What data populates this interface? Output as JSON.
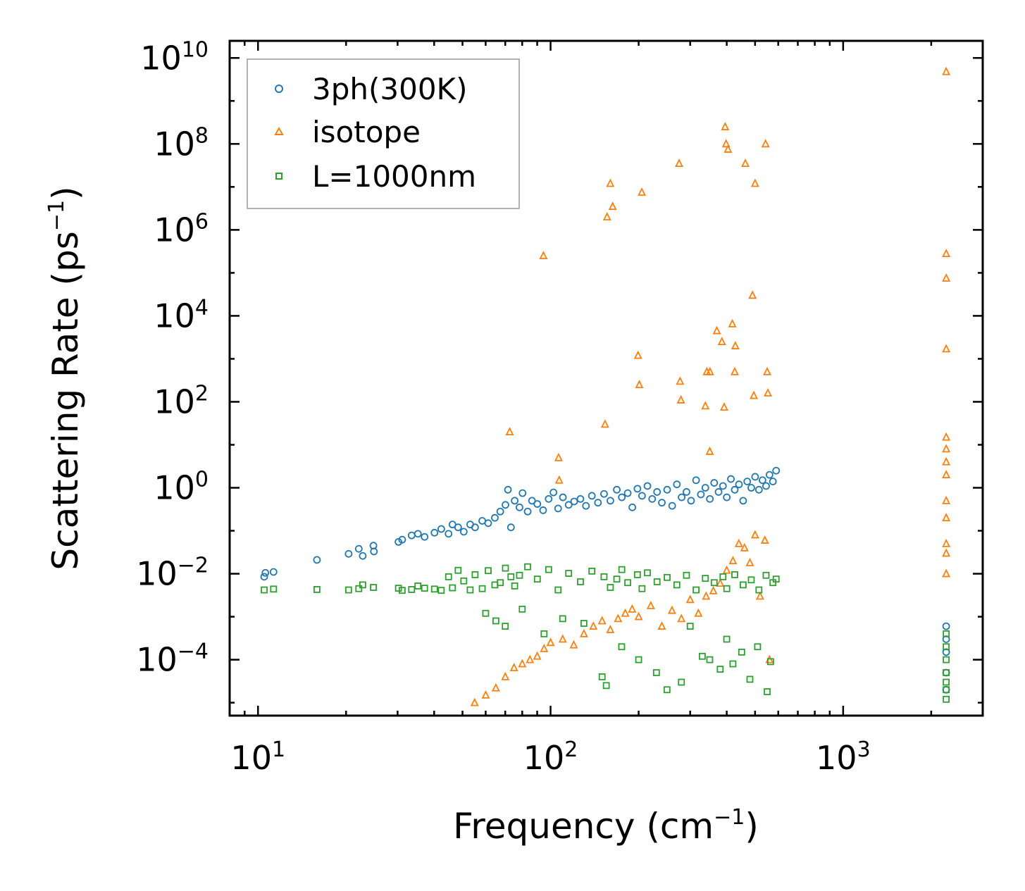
{
  "chart_data": {
    "type": "scatter",
    "title": "",
    "xlabel": "Frequency (cm",
    "xlabel_exp": "−1",
    "xlabel_tail": ")",
    "ylabel": "Scattering Rate (ps",
    "ylabel_exp": "−1",
    "ylabel_tail": ")",
    "xscale": "log",
    "yscale": "log",
    "xlim": [
      8,
      3000
    ],
    "ylim": [
      5e-06,
      25000000000.0
    ],
    "x_ticks": [
      {
        "value": 10,
        "base": "10",
        "exp": "1"
      },
      {
        "value": 100,
        "base": "10",
        "exp": "2"
      },
      {
        "value": 1000,
        "base": "10",
        "exp": "3"
      }
    ],
    "y_ticks": [
      {
        "value": 10000000000.0,
        "base": "10",
        "exp": "10"
      },
      {
        "value": 100000000.0,
        "base": "10",
        "exp": "8"
      },
      {
        "value": 1000000.0,
        "base": "10",
        "exp": "6"
      },
      {
        "value": 10000.0,
        "base": "10",
        "exp": "4"
      },
      {
        "value": 100.0,
        "base": "10",
        "exp": "2"
      },
      {
        "value": 1,
        "base": "10",
        "exp": "0"
      },
      {
        "value": 0.01,
        "base": "10",
        "exp": "−2"
      },
      {
        "value": 0.0001,
        "base": "10",
        "exp": "−4"
      }
    ],
    "legend_position": "upper-left",
    "series": [
      {
        "name": "3ph(300K)",
        "marker": "circle",
        "color": "#1f77b4",
        "x": [
          10.5,
          10.6,
          11.3,
          15.9,
          20.4,
          22.1,
          22.8,
          24.8,
          24.9,
          30.2,
          31.1,
          33.5,
          35.2,
          37.1,
          40.1,
          42.3,
          44.8,
          46.2,
          48.3,
          50.5,
          53.1,
          55.2,
          58.4,
          61.2,
          64.5,
          67.3,
          70.1,
          71.5,
          73.2,
          75.4,
          78.3,
          80.2,
          83.5,
          86.4,
          90.1,
          94.3,
          98.5,
          102.3,
          106.1,
          110.2,
          115.3,
          120.4,
          126.5,
          132.1,
          138.4,
          145.2,
          152.3,
          160.1,
          168.4,
          175.2,
          183.5,
          190.3,
          198.1,
          205.4,
          214.3,
          222.5,
          231.2,
          240.1,
          250.3,
          260.4,
          270.2,
          280.5,
          291.4,
          302.1,
          314.3,
          326.4,
          338.1,
          350.3,
          362.4,
          375.1,
          388.3,
          400.2,
          413.4,
          426.1,
          440.5,
          455.2,
          470.1,
          485.3,
          500.2,
          515.4,
          530.1,
          545.3,
          560.2,
          575.4,
          590.1,
          2250,
          2250,
          2250,
          2250,
          2250
        ],
        "y": [
          0.0085,
          0.0105,
          0.011,
          0.021,
          0.029,
          0.038,
          0.026,
          0.045,
          0.033,
          0.055,
          0.062,
          0.078,
          0.085,
          0.072,
          0.09,
          0.11,
          0.085,
          0.14,
          0.12,
          0.095,
          0.14,
          0.12,
          0.17,
          0.15,
          0.2,
          0.28,
          0.4,
          0.9,
          0.12,
          0.5,
          0.35,
          0.75,
          0.28,
          0.5,
          0.42,
          0.3,
          0.55,
          0.78,
          0.33,
          0.6,
          0.4,
          0.48,
          0.55,
          0.38,
          0.65,
          0.45,
          0.72,
          0.5,
          0.9,
          0.6,
          0.75,
          0.35,
          0.95,
          0.65,
          1.1,
          0.55,
          0.8,
          0.45,
          0.9,
          0.38,
          1.2,
          0.6,
          0.8,
          0.5,
          1.5,
          0.7,
          1.0,
          0.55,
          1.3,
          0.8,
          1.1,
          0.6,
          1.6,
          0.9,
          1.2,
          0.5,
          1.4,
          1.0,
          1.8,
          0.9,
          1.5,
          1.1,
          2.0,
          1.4,
          2.5,
          0.0006,
          0.0003,
          0.00015,
          5e-05,
          2e-05
        ]
      },
      {
        "name": "isotope",
        "marker": "triangle",
        "color": "#ff7f0e",
        "x": [
          72.5,
          94.5,
          106.5,
          107.0,
          153.5,
          156.0,
          160.0,
          163.0,
          199.0,
          201.0,
          205.0,
          275.0,
          277.0,
          279.0,
          338.0,
          342.0,
          350.0,
          350.5,
          370.0,
          385.0,
          392.0,
          395.0,
          398.0,
          404.0,
          418.0,
          426.0,
          428.0,
          463.0,
          490.0,
          495.0,
          500.0,
          543.0,
          550.0,
          553.0,
          2250,
          2250,
          2250,
          2250,
          2250,
          2250,
          2250,
          2250,
          2250,
          2250,
          2250,
          2250,
          2250,
          55,
          60,
          65,
          70,
          75,
          80,
          85,
          90,
          95,
          100,
          110,
          120,
          130,
          140,
          150,
          160,
          170,
          180,
          190,
          200,
          220,
          240,
          260,
          280,
          300,
          320,
          340,
          360,
          380,
          400,
          420,
          440,
          460,
          480,
          500,
          520,
          540,
          560
        ],
        "y": [
          20,
          250000,
          5,
          1.5,
          30,
          2000000,
          12000000,
          3500000,
          1200,
          250,
          7500000,
          35000000,
          300,
          110,
          80,
          500,
          7,
          500,
          4500,
          2500,
          75,
          250000000,
          100000000,
          75000000,
          6500,
          500,
          2000,
          35000000,
          30000,
          140,
          12000000,
          100000000,
          500,
          160,
          4800000000,
          280000,
          75000,
          1700,
          15,
          8,
          4,
          2,
          0.5,
          0.2,
          0.05,
          0.03,
          0.01,
          1e-05,
          1.5e-05,
          2.2e-05,
          4e-05,
          6.5e-05,
          8e-05,
          0.0001,
          0.00012,
          0.00018,
          0.00025,
          0.0003,
          0.00022,
          0.0004,
          0.0006,
          0.0008,
          0.0005,
          0.0009,
          0.0012,
          0.0015,
          0.001,
          0.0018,
          0.0006,
          0.0014,
          0.0009,
          0.0025,
          0.0012,
          0.003,
          0.004,
          0.006,
          0.012,
          0.02,
          0.05,
          0.04,
          0.018,
          0.08,
          0.003,
          0.06,
          0.0001
        ]
      },
      {
        "name": "L=1000nm",
        "marker": "square",
        "color": "#2ca02c",
        "x": [
          10.5,
          11.3,
          15.9,
          20.4,
          22.1,
          22.8,
          24.8,
          30.2,
          31.1,
          33.5,
          35.2,
          37.1,
          40.1,
          42.3,
          44.8,
          46.2,
          48.3,
          50.5,
          53.1,
          55.2,
          58.4,
          61.2,
          64.5,
          67.3,
          70.1,
          73.2,
          75.4,
          78.3,
          83.5,
          90.1,
          98.5,
          106.1,
          115.3,
          126.5,
          138.4,
          152.3,
          160.1,
          168.4,
          175.2,
          183.5,
          198.1,
          205.4,
          214.3,
          231.2,
          250.3,
          270.2,
          291.4,
          314.3,
          338.1,
          362.4,
          388.3,
          400.2,
          426.1,
          455.2,
          485.3,
          515.4,
          545.3,
          575.4,
          590.1,
          2250,
          2250,
          2250,
          2250,
          2250,
          2250,
          2250,
          60,
          65,
          70,
          80,
          95,
          110,
          130,
          150,
          155,
          175,
          200,
          230,
          250,
          280,
          300,
          330,
          350,
          380,
          400,
          420,
          450,
          480,
          510,
          550,
          565
        ],
        "y": [
          0.0042,
          0.0044,
          0.0043,
          0.0042,
          0.0045,
          0.0055,
          0.0048,
          0.0046,
          0.0041,
          0.0043,
          0.0052,
          0.0046,
          0.0044,
          0.0041,
          0.0085,
          0.0047,
          0.012,
          0.0068,
          0.0042,
          0.0095,
          0.0045,
          0.0118,
          0.0055,
          0.0062,
          0.0135,
          0.0085,
          0.0052,
          0.0092,
          0.0145,
          0.0075,
          0.0125,
          0.0042,
          0.0102,
          0.0065,
          0.0115,
          0.0085,
          0.0048,
          0.0075,
          0.0125,
          0.0062,
          0.0095,
          0.0045,
          0.0105,
          0.0065,
          0.0082,
          0.0055,
          0.0092,
          0.0042,
          0.0078,
          0.0062,
          0.0085,
          0.0045,
          0.0095,
          0.0055,
          0.0072,
          0.0042,
          0.0092,
          0.0062,
          0.0075,
          0.0004,
          0.0002,
          0.0001,
          5e-05,
          2e-05,
          1.2e-05,
          3e-05,
          0.0012,
          0.0008,
          0.0006,
          0.0015,
          0.0004,
          0.0009,
          0.0007,
          4e-05,
          2.5e-05,
          0.0002,
          0.0001,
          5e-05,
          2e-05,
          3e-05,
          0.0006,
          0.00012,
          0.0001,
          6e-05,
          0.0003,
          8e-05,
          0.00015,
          3.5e-05,
          0.0002,
          1.8e-05,
          9e-05
        ]
      }
    ]
  }
}
